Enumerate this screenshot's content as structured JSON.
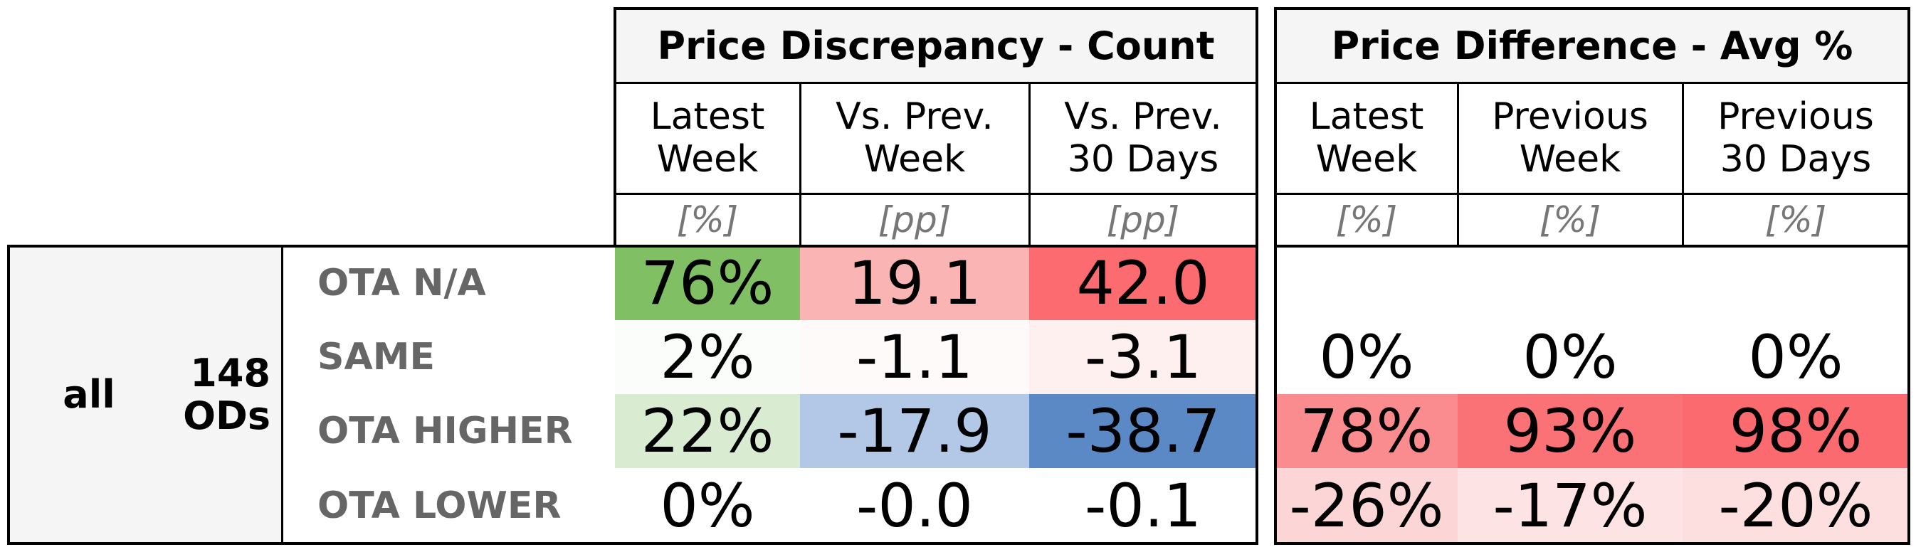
{
  "left_panel": {
    "title": "Price Discrepancy - Count",
    "columns": [
      {
        "label": "Latest\nWeek",
        "unit": "[%]"
      },
      {
        "label": "Vs. Prev.\nWeek",
        "unit": "[pp]"
      },
      {
        "label": "Vs. Prev.\n30 Days",
        "unit": "[pp]"
      }
    ]
  },
  "right_panel": {
    "title": "Price Difference - Avg %",
    "columns": [
      {
        "label": "Latest\nWeek",
        "unit": "[%]"
      },
      {
        "label": "Previous\nWeek",
        "unit": "[%]"
      },
      {
        "label": "Previous\n30 Days",
        "unit": "[%]"
      }
    ]
  },
  "group": {
    "name": "all",
    "count_label": "148\nODs"
  },
  "rows": [
    {
      "label": "OTA N/A",
      "left": [
        {
          "value": "76%",
          "color": "#80bf63"
        },
        {
          "value": "19.1",
          "color": "#fbb4b4"
        },
        {
          "value": "42.0",
          "color": "#fb6b6f"
        }
      ],
      "right": [
        {
          "value": "",
          "color": "#ffffff"
        },
        {
          "value": "",
          "color": "#ffffff"
        },
        {
          "value": "",
          "color": "#ffffff"
        }
      ]
    },
    {
      "label": "SAME",
      "left": [
        {
          "value": "2%",
          "color": "#fbfdfa"
        },
        {
          "value": "-1.1",
          "color": "#fffafa"
        },
        {
          "value": "-3.1",
          "color": "#fff0f0"
        }
      ],
      "right": [
        {
          "value": "0%",
          "color": "#ffffff"
        },
        {
          "value": "0%",
          "color": "#ffffff"
        },
        {
          "value": "0%",
          "color": "#ffffff"
        }
      ]
    },
    {
      "label": "OTA HIGHER",
      "left": [
        {
          "value": "22%",
          "color": "#d9ecd2"
        },
        {
          "value": "-17.9",
          "color": "#b3c8e6"
        },
        {
          "value": "-38.7",
          "color": "#5b89c6"
        }
      ],
      "right": [
        {
          "value": "78%",
          "color": "#fa8b8e"
        },
        {
          "value": "93%",
          "color": "#fa7275"
        },
        {
          "value": "98%",
          "color": "#fa6a6e"
        }
      ]
    },
    {
      "label": "OTA LOWER",
      "left": [
        {
          "value": "0%",
          "color": "#ffffff"
        },
        {
          "value": "-0.0",
          "color": "#ffffff"
        },
        {
          "value": "-0.1",
          "color": "#ffffff"
        }
      ],
      "right": [
        {
          "value": "-26%",
          "color": "#fcd6d7"
        },
        {
          "value": "-17%",
          "color": "#fde3e4"
        },
        {
          "value": "-20%",
          "color": "#fddfe0"
        }
      ]
    }
  ]
}
